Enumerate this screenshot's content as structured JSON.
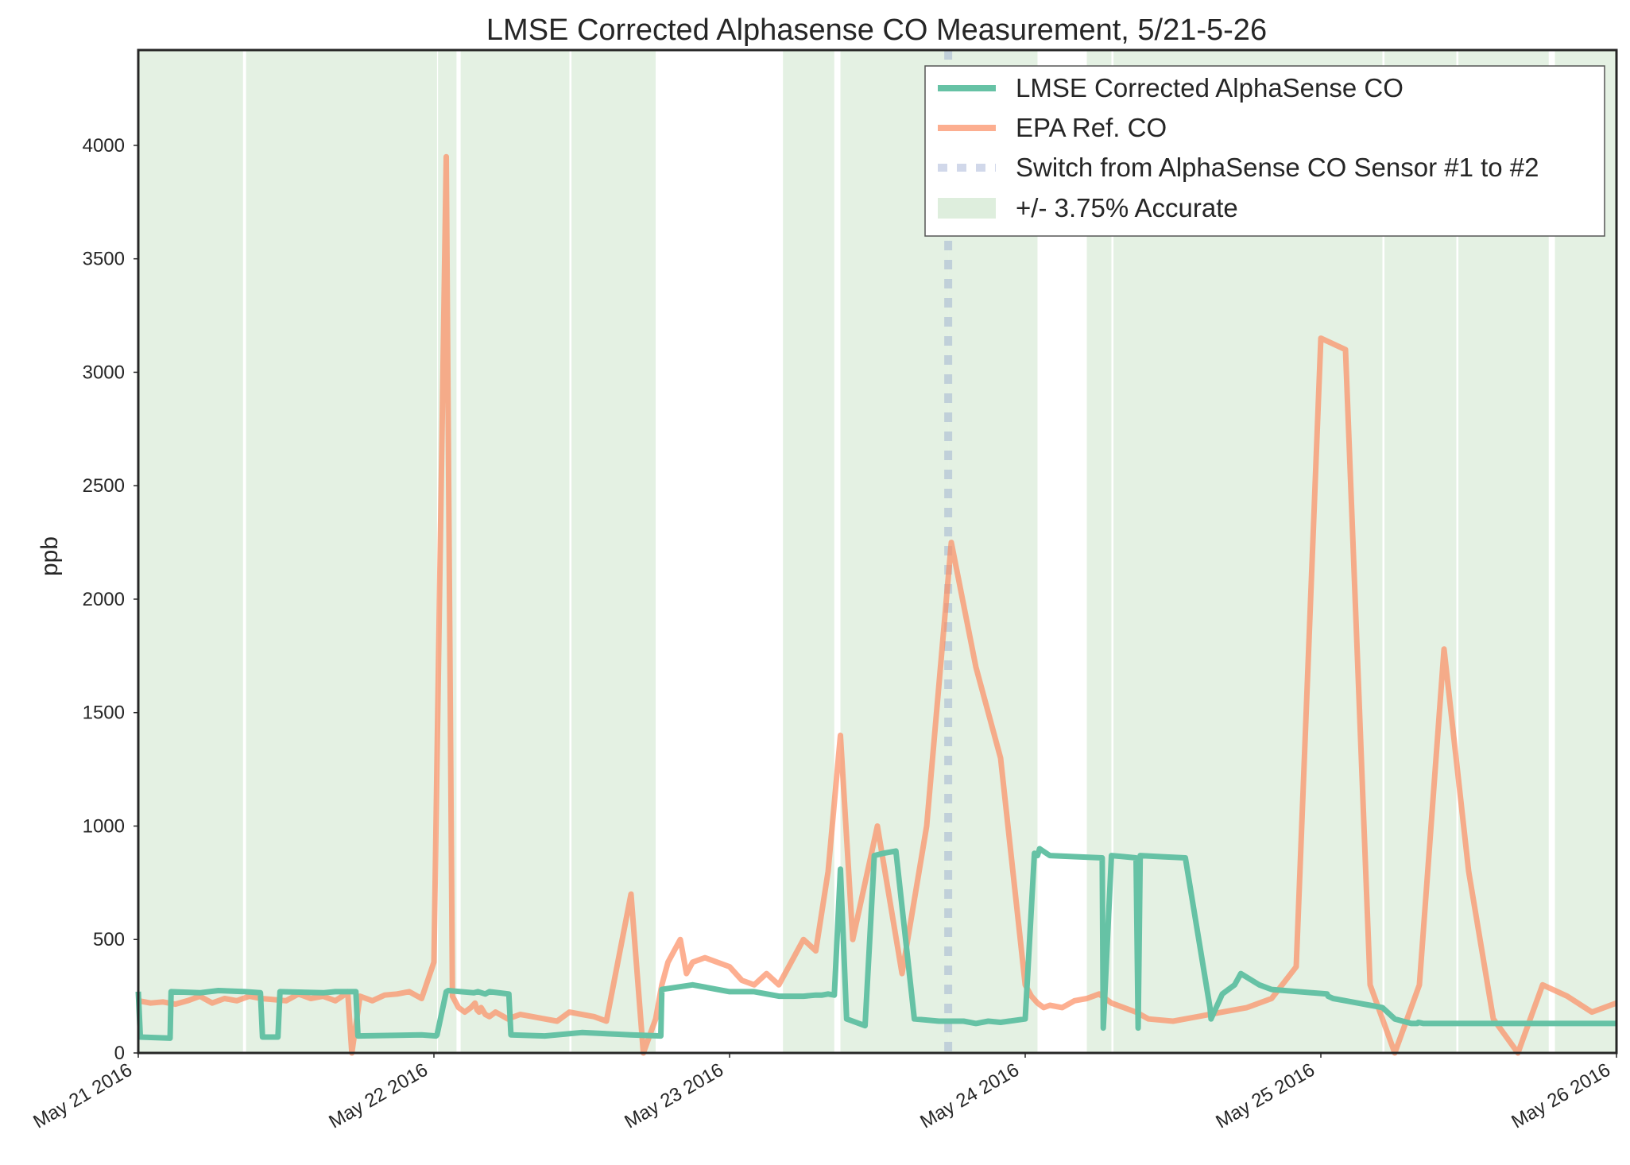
{
  "chart_data": {
    "type": "line",
    "title": "LMSE Corrected Alphasense CO Measurement, 5/21-5-26",
    "xlabel": "",
    "ylabel": "ppb",
    "xlim": [
      "May 21 2016",
      "May 26 2016"
    ],
    "ylim": [
      0,
      4420
    ],
    "x_ticks": [
      "May 21 2016",
      "May 22 2016",
      "May 23 2016",
      "May 24 2016",
      "May 25 2016",
      "May 26 2016"
    ],
    "y_ticks": [
      0,
      500,
      1000,
      1500,
      2000,
      2500,
      3000,
      3500,
      4000
    ],
    "grid": false,
    "legend_position": "top-right",
    "colors": {
      "lmse": "#66c2a5",
      "epa": "#fc8d62",
      "switch": "#8da0cb",
      "band": "#d6ead4",
      "axis": "#262626"
    },
    "series": [
      {
        "name": "LMSE Corrected AlphaSense CO",
        "x": [
          "05-21 00:00",
          "05-21 00:10",
          "05-21 02:35",
          "05-21 02:40",
          "05-21 05:00",
          "05-21 06:30",
          "05-21 08:40",
          "05-21 09:55",
          "05-21 10:05",
          "05-21 11:20",
          "05-21 11:30",
          "05-21 15:00",
          "05-21 16:00",
          "05-21 17:40",
          "05-21 17:50",
          "05-21 23:00",
          "05-22 00:10",
          "05-22 00:15",
          "05-22 01:00",
          "05-22 01:10",
          "05-22 03:15",
          "05-22 03:35",
          "05-22 04:10",
          "05-22 04:30",
          "05-22 06:05",
          "05-22 06:15",
          "05-22 09:00",
          "05-22 12:00",
          "05-22 16:00",
          "05-22 18:25",
          "05-22 18:30",
          "05-22 21:00",
          "05-23 00:00",
          "05-23 02:00",
          "05-23 04:00",
          "05-23 05:55",
          "05-23 06:00",
          "05-23 07:00",
          "05-23 07:30",
          "05-23 08:00",
          "05-23 08:30",
          "05-23 09:00",
          "05-23 09:30",
          "05-23 10:00",
          "05-23 10:30",
          "05-23 11:00",
          "05-23 11:45",
          "05-23 12:30",
          "05-23 13:30",
          "05-23 15:00",
          "05-23 17:00",
          "05-23 19:00",
          "05-23 20:00",
          "05-23 21:00",
          "05-23 22:00",
          "05-24 00:00",
          "05-24 00:45",
          "05-24 01:00",
          "05-24 01:10",
          "05-24 02:00",
          "05-24 04:00",
          "05-24 06:15",
          "05-24 06:20",
          "05-24 07:00",
          "05-24 08:00",
          "05-24 09:00",
          "05-24 09:10",
          "05-24 09:20",
          "05-24 11:00",
          "05-24 13:00",
          "05-24 15:00",
          "05-24 15:05",
          "05-24 16:00",
          "05-24 17:00",
          "05-24 17:30",
          "05-24 19:00",
          "05-24 20:00",
          "05-25 00:30",
          "05-25 00:35",
          "05-25 01:00",
          "05-25 02:00",
          "05-25 03:00",
          "05-25 04:00",
          "05-25 05:00",
          "05-25 06:00",
          "05-25 07:20",
          "05-25 07:25",
          "05-25 07:50",
          "05-25 07:55",
          "05-25 08:20",
          "05-25 08:25",
          "05-25 09:00",
          "05-25 10:00",
          "05-25 11:00",
          "05-25 11:30",
          "05-25 11:35",
          "05-25 12:30",
          "05-25 13:00",
          "05-25 14:00",
          "05-25 15:00",
          "05-25 16:00",
          "05-25 17:00",
          "05-25 18:00",
          "05-25 20:00",
          "05-25 22:00",
          "05-26 00:00"
        ],
        "values": [
          270,
          70,
          65,
          270,
          265,
          275,
          270,
          265,
          70,
          70,
          270,
          265,
          270,
          270,
          75,
          80,
          75,
          80,
          270,
          275,
          265,
          270,
          260,
          270,
          260,
          80,
          75,
          90,
          80,
          75,
          280,
          300,
          270,
          270,
          250,
          250,
          250,
          255,
          255,
          260,
          255,
          810,
          150,
          140,
          130,
          120,
          870,
          880,
          890,
          150,
          140,
          140,
          130,
          140,
          135,
          150,
          880,
          870,
          900,
          870,
          865,
          860,
          110,
          870,
          865,
          860,
          110,
          870,
          865,
          860,
          200,
          150,
          260,
          300,
          350,
          300,
          280,
          260,
          250,
          240,
          230,
          220,
          210,
          200,
          150,
          130,
          130,
          130,
          135,
          130,
          130,
          130,
          130,
          130,
          130,
          130,
          130,
          130,
          130,
          130,
          130,
          130,
          130,
          130,
          130,
          130
        ]
      },
      {
        "name": "EPA Ref. CO",
        "x": [
          "05-21 00:00",
          "05-21 01:00",
          "05-21 02:00",
          "05-21 03:00",
          "05-21 04:00",
          "05-21 05:00",
          "05-21 06:00",
          "05-21 07:00",
          "05-21 08:00",
          "05-21 09:00",
          "05-21 10:00",
          "05-21 11:00",
          "05-21 12:00",
          "05-21 13:00",
          "05-21 14:00",
          "05-21 15:00",
          "05-21 16:00",
          "05-21 16:50",
          "05-21 17:00",
          "05-21 17:20",
          "05-21 18:00",
          "05-21 19:00",
          "05-21 20:00",
          "05-21 21:00",
          "05-21 22:00",
          "05-21 23:00",
          "05-22 00:00",
          "05-22 01:00",
          "05-22 01:30",
          "05-22 02:00",
          "05-22 02:30",
          "05-22 03:00",
          "05-22 03:20",
          "05-22 03:30",
          "05-22 03:40",
          "05-22 03:50",
          "05-22 04:10",
          "05-22 04:30",
          "05-22 05:00",
          "05-22 06:00",
          "05-22 07:00",
          "05-22 08:00",
          "05-22 09:00",
          "05-22 10:00",
          "05-22 11:00",
          "05-22 12:00",
          "05-22 13:00",
          "05-22 14:00",
          "05-22 16:00",
          "05-22 17:00",
          "05-22 18:00",
          "05-22 18:30",
          "05-22 19:00",
          "05-22 20:00",
          "05-22 20:30",
          "05-22 21:00",
          "05-22 22:00",
          "05-23 00:00",
          "05-23 01:00",
          "05-23 02:00",
          "05-23 03:00",
          "05-23 04:00",
          "05-23 05:00",
          "05-23 06:00",
          "05-23 07:00",
          "05-23 08:00",
          "05-23 09:00",
          "05-23 10:00",
          "05-23 12:00",
          "05-23 14:00",
          "05-23 16:00",
          "05-23 18:00",
          "05-23 20:00",
          "05-23 22:00",
          "05-24 00:00",
          "05-24 00:30",
          "05-24 01:00",
          "05-24 01:30",
          "05-24 02:00",
          "05-24 03:00",
          "05-24 04:00",
          "05-24 05:00",
          "05-24 06:00",
          "05-24 07:00",
          "05-24 08:00",
          "05-24 09:00",
          "05-24 10:00",
          "05-24 12:00",
          "05-24 14:00",
          "05-24 16:00",
          "05-24 18:00",
          "05-24 20:00",
          "05-24 22:00",
          "05-25 00:00",
          "05-25 02:00",
          "05-25 04:00",
          "05-25 06:00",
          "05-25 08:00",
          "05-25 10:00",
          "05-25 12:00",
          "05-25 14:00",
          "05-25 16:00",
          "05-25 18:00",
          "05-25 20:00",
          "05-25 22:00",
          "05-26 00:00"
        ],
        "values": [
          230,
          220,
          225,
          215,
          230,
          250,
          220,
          240,
          230,
          250,
          240,
          235,
          230,
          260,
          240,
          250,
          230,
          260,
          270,
          0,
          250,
          230,
          255,
          260,
          270,
          240,
          400,
          3950,
          250,
          200,
          180,
          200,
          220,
          190,
          180,
          200,
          170,
          160,
          180,
          150,
          170,
          160,
          150,
          140,
          180,
          170,
          160,
          140,
          700,
          0,
          150,
          300,
          400,
          500,
          350,
          400,
          420,
          380,
          320,
          300,
          350,
          300,
          400,
          500,
          450,
          800,
          1400,
          500,
          1000,
          350,
          1000,
          2250,
          1700,
          1300,
          300,
          250,
          220,
          200,
          210,
          200,
          230,
          240,
          260,
          220,
          200,
          180,
          150,
          140,
          160,
          180,
          200,
          240,
          380,
          3150,
          3100,
          300,
          0,
          300,
          1780,
          800,
          150,
          0,
          300,
          250,
          180,
          220
        ]
      },
      {
        "name": "Switch from AlphaSense CO Sensor #1 to #2",
        "x": [
          "05-23 17:45"
        ]
      },
      {
        "name": "+/- 3.75% Accurate",
        "intervals": [
          [
            "05-21 00:00",
            "05-21 03:00"
          ],
          [
            "05-21 03:00",
            "05-21 08:30"
          ],
          [
            "05-21 08:45",
            "05-22 00:15"
          ],
          [
            "05-22 00:20",
            "05-22 01:50"
          ],
          [
            "05-22 02:10",
            "05-22 11:00"
          ],
          [
            "05-22 11:10",
            "05-22 18:00"
          ],
          [
            "05-23 04:20",
            "05-23 08:30"
          ],
          [
            "05-23 09:00",
            "05-23 17:45"
          ],
          [
            "05-23 17:45",
            "05-24 01:00"
          ],
          [
            "05-24 05:00",
            "05-24 07:00"
          ],
          [
            "05-24 07:10",
            "05-25 05:00"
          ],
          [
            "05-25 05:10",
            "05-25 11:00"
          ],
          [
            "05-25 11:10",
            "05-25 18:30"
          ],
          [
            "05-25 19:00",
            "05-26 00:00"
          ]
        ]
      }
    ]
  }
}
